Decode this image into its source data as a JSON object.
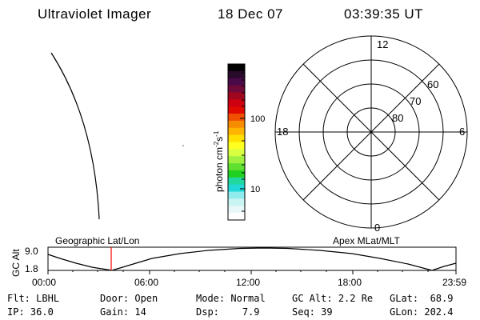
{
  "header": {
    "instrument": "Ultraviolet Imager",
    "date": "18 Dec 07",
    "time": "03:39:35 UT"
  },
  "colorbar": {
    "unit_label": "photon cm",
    "exp1": "-2",
    "mid": "s",
    "exp2": "-1",
    "ticks": [
      "100",
      "10"
    ],
    "colors": [
      "#000000",
      "#2a0a2a",
      "#4a0a4a",
      "#700a3a",
      "#a0061e",
      "#cc0010",
      "#e00a00",
      "#f05000",
      "#f88c00",
      "#ffb400",
      "#ffe000",
      "#ffff20",
      "#d8ff40",
      "#a0f040",
      "#60e030",
      "#20d020",
      "#20d8a0",
      "#20d8d8",
      "#90ecec",
      "#c8f4f4",
      "#e8f8f8",
      "#ffffff"
    ]
  },
  "polar_plot": {
    "mlt_labels": [
      "12",
      "6",
      "0",
      "18"
    ],
    "lat_labels": [
      "60",
      "70",
      "80"
    ]
  },
  "timeline": {
    "left_title": "Geographic Lat/Lon",
    "right_title": "Apex MLat/MLT",
    "ylabel": "GC Alt",
    "y_ticks": [
      "9.0",
      "1.8"
    ],
    "x_ticks": [
      "00:00",
      "06:00",
      "12:00",
      "18:00",
      "23:59"
    ],
    "marker_color": "#ff0000"
  },
  "status": {
    "row1": [
      {
        "label": "Flt:",
        "value": "LBHL"
      },
      {
        "label": "Door:",
        "value": "Open"
      },
      {
        "label": "Mode:",
        "value": "Normal"
      },
      {
        "label": "GC Alt:",
        "value": "2.2 Re"
      },
      {
        "label": "GLat:",
        "value": "68.9"
      }
    ],
    "row2": [
      {
        "label": "IP:",
        "value": "36.0"
      },
      {
        "label": "Gain:",
        "value": "14"
      },
      {
        "label": "Dsp:",
        "value": "7.9"
      },
      {
        "label": "Seq:",
        "value": "39"
      },
      {
        "label": "GLon:",
        "value": "202.4"
      }
    ]
  }
}
